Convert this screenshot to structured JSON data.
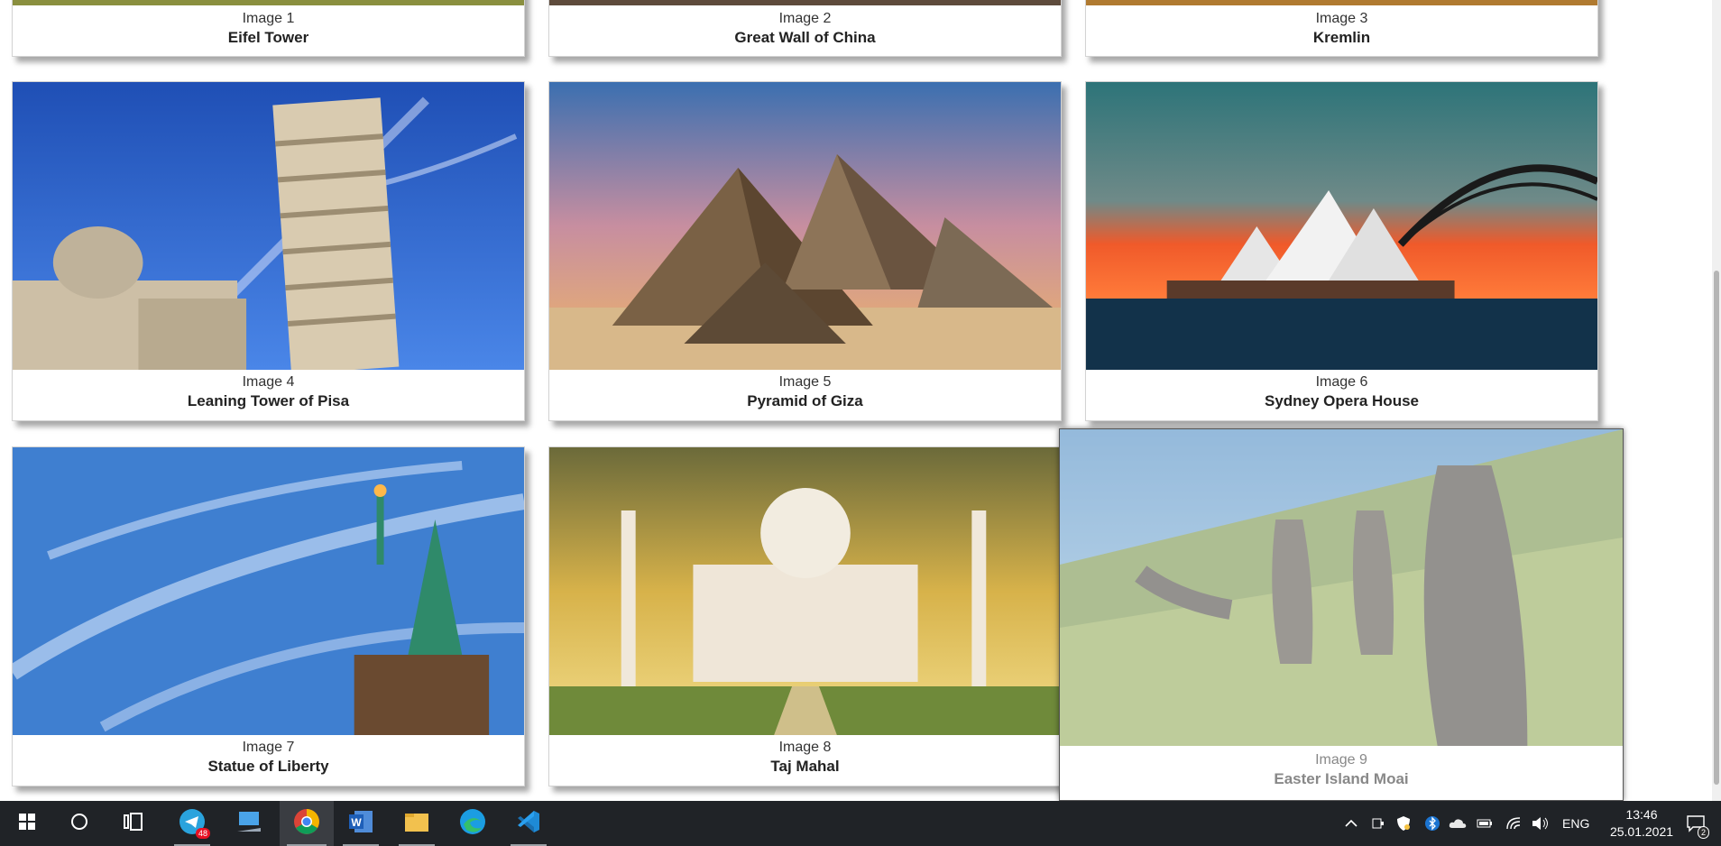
{
  "gallery": {
    "cards": [
      {
        "number": "Image 1",
        "title": "Eifel Tower"
      },
      {
        "number": "Image 2",
        "title": "Great Wall of China"
      },
      {
        "number": "Image 3",
        "title": "Kremlin"
      },
      {
        "number": "Image 4",
        "title": "Leaning Tower of Pisa"
      },
      {
        "number": "Image 5",
        "title": "Pyramid of Giza"
      },
      {
        "number": "Image 6",
        "title": "Sydney Opera House"
      },
      {
        "number": "Image 7",
        "title": "Statue of Liberty"
      },
      {
        "number": "Image 8",
        "title": "Taj Mahal"
      },
      {
        "number": "Image 9",
        "title": "Easter Island Moai"
      }
    ],
    "hovered_card": "Image 9"
  },
  "taskbar": {
    "pinned": [
      {
        "icon": "windows-start-icon"
      },
      {
        "icon": "search-icon"
      },
      {
        "icon": "task-view-icon"
      },
      {
        "icon": "telegram-icon",
        "badge": "48"
      },
      {
        "icon": "remote-desktop-icon"
      },
      {
        "icon": "chrome-icon",
        "active": true
      },
      {
        "icon": "word-icon"
      },
      {
        "icon": "file-explorer-icon"
      },
      {
        "icon": "edge-icon"
      },
      {
        "icon": "vscode-icon"
      }
    ],
    "tray": {
      "language": "ENG",
      "time": "13:46",
      "date": "25.01.2021",
      "notifications": "2"
    }
  },
  "colors": {
    "taskbar_bg": "#202327",
    "card_border": "#d3d3d3"
  }
}
